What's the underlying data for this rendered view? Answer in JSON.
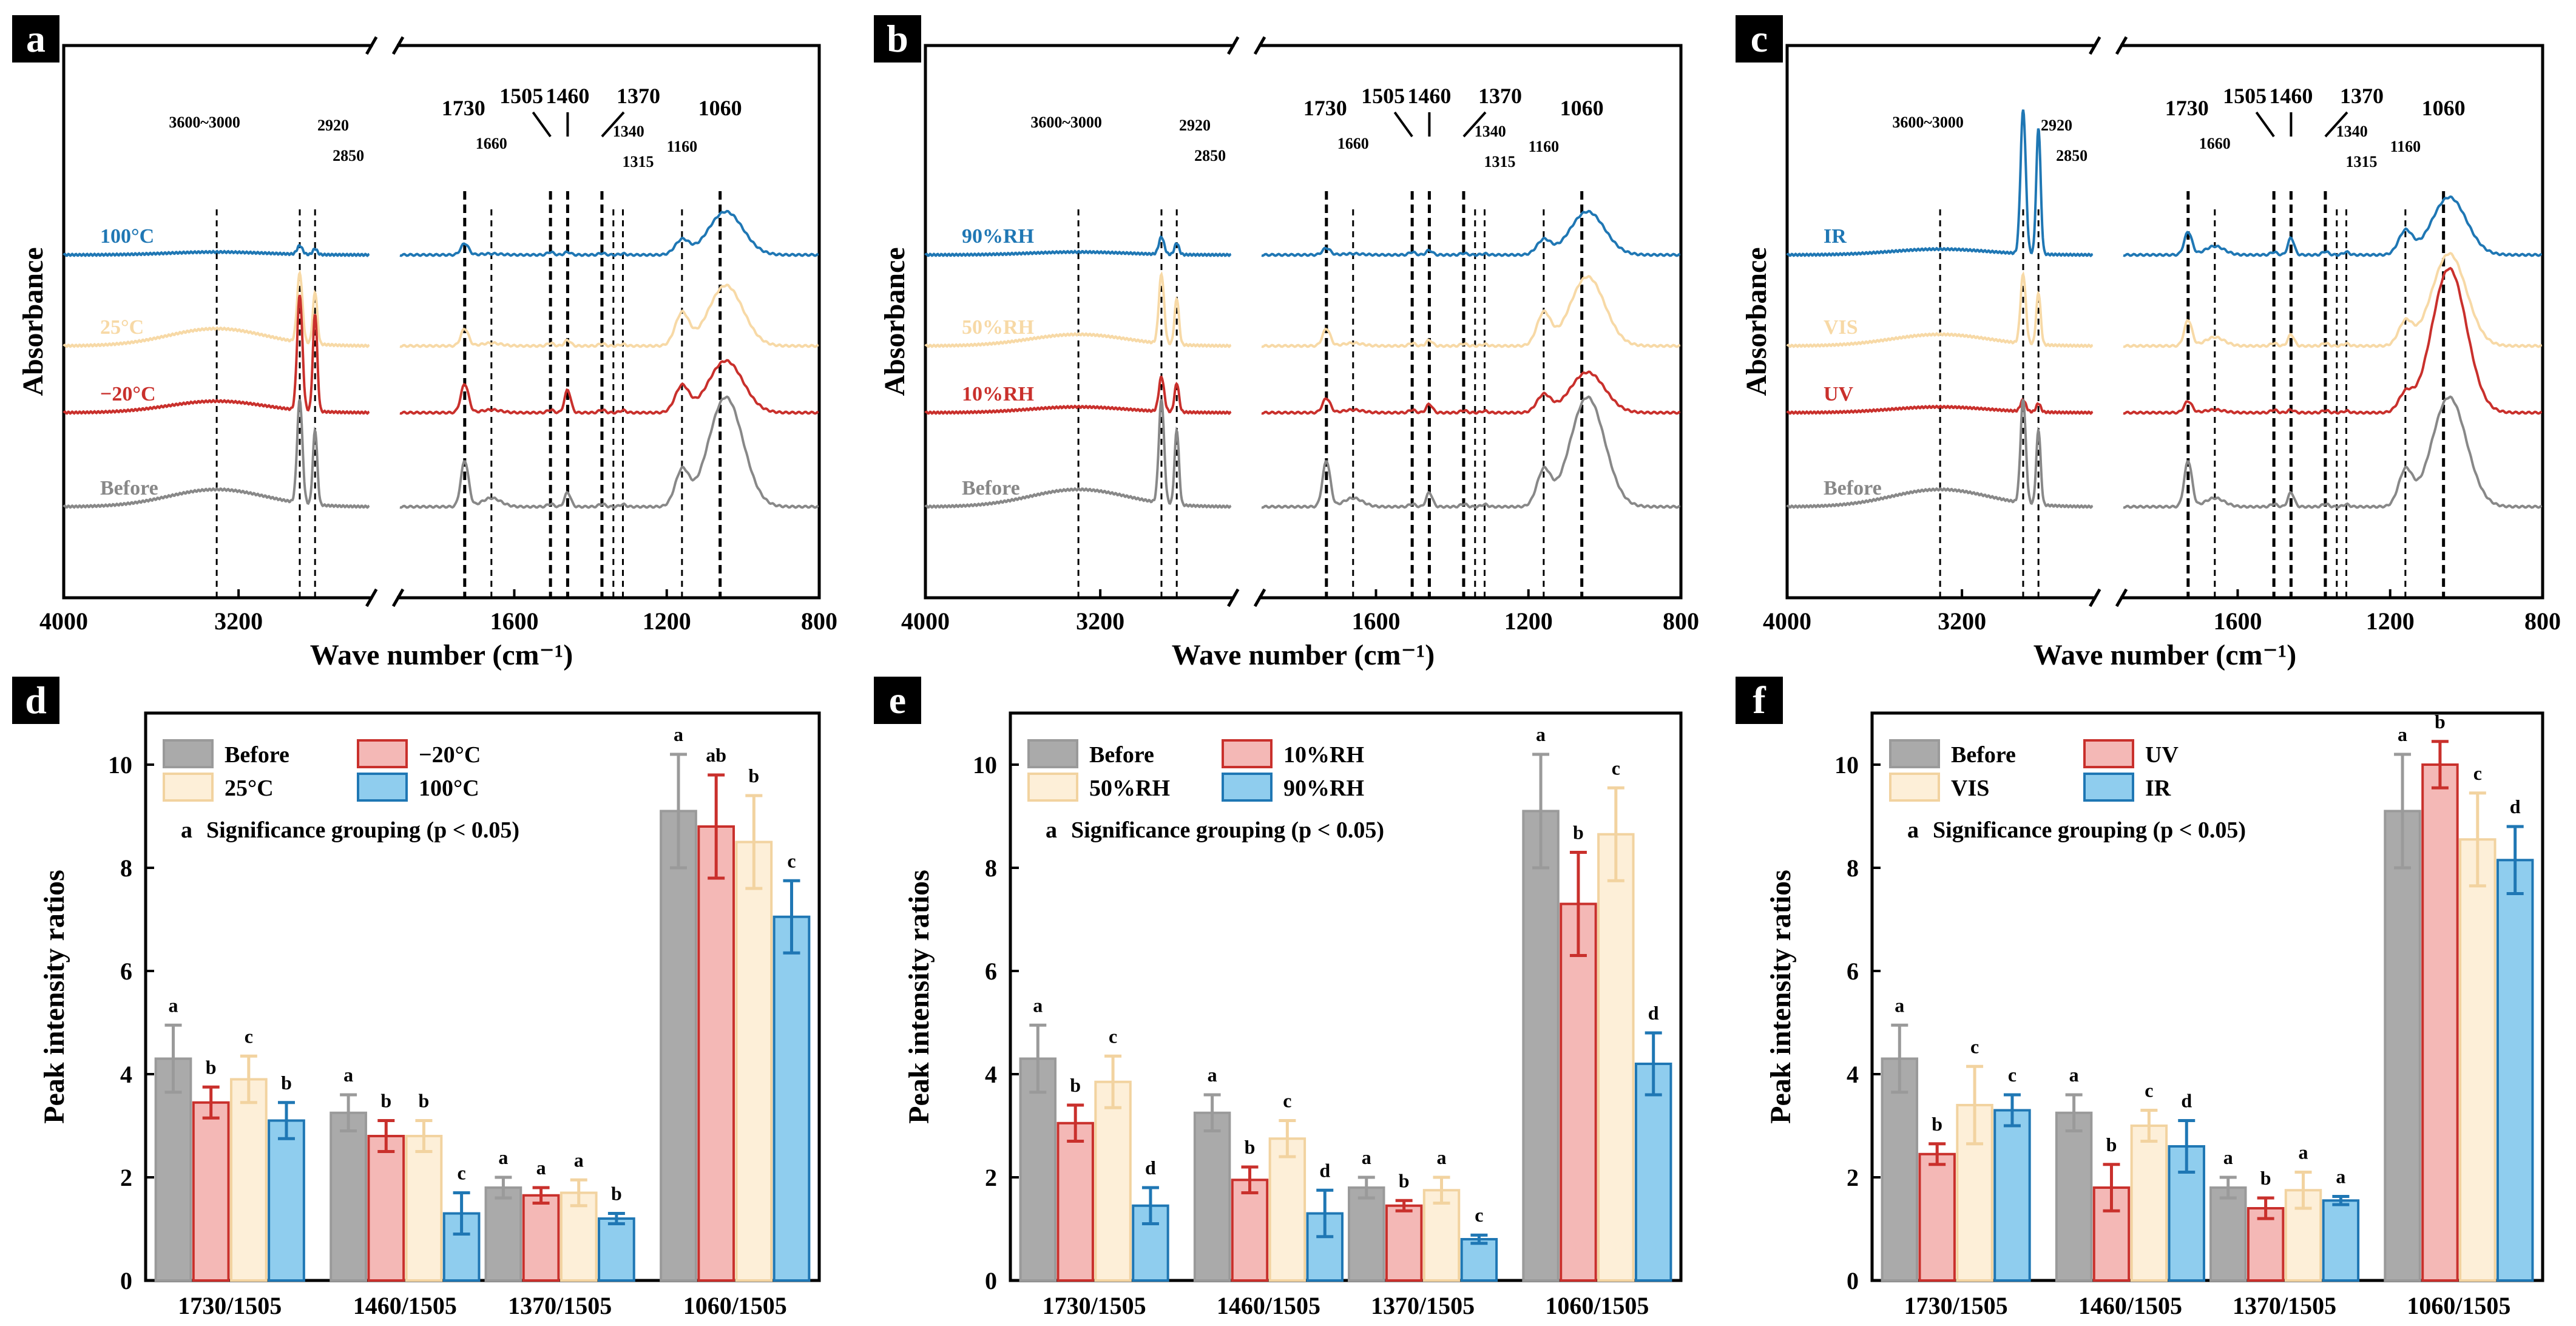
{
  "figure": {
    "ftir_panels": [
      {
        "label": "a",
        "y_label": "Absorbance",
        "x_label": "Wave number (cm⁻¹)",
        "x_ticks": [
          "4000",
          "3200",
          "1600",
          "1200",
          "800"
        ],
        "peak_labels_big": [
          "1730",
          "1505",
          "1460",
          "1370",
          "1060"
        ],
        "peak_labels_small": [
          "3600~3000",
          "2920",
          "2850",
          "1660",
          "1340",
          "1315",
          "1160"
        ],
        "spectra": [
          {
            "name": "100°C",
            "color": "#1f77b4"
          },
          {
            "name": "25°C",
            "color": "#f7d9a6"
          },
          {
            "name": "−20°C",
            "color": "#c9302c"
          },
          {
            "name": "Before",
            "color": "#888888"
          }
        ]
      },
      {
        "label": "b",
        "y_label": "Absorbance",
        "x_label": "Wave number (cm⁻¹)",
        "x_ticks": [
          "4000",
          "3200",
          "1600",
          "1200",
          "800"
        ],
        "peak_labels_big": [
          "1730",
          "1505",
          "1460",
          "1370",
          "1060"
        ],
        "peak_labels_small": [
          "3600~3000",
          "2920",
          "2850",
          "1660",
          "1340",
          "1315",
          "1160"
        ],
        "spectra": [
          {
            "name": "90%RH",
            "color": "#1f77b4"
          },
          {
            "name": "50%RH",
            "color": "#f7d9a6"
          },
          {
            "name": "10%RH",
            "color": "#c9302c"
          },
          {
            "name": "Before",
            "color": "#888888"
          }
        ]
      },
      {
        "label": "c",
        "y_label": "Absorbance",
        "x_label": "Wave number (cm⁻¹)",
        "x_ticks": [
          "4000",
          "3200",
          "1600",
          "1200",
          "800"
        ],
        "peak_labels_big": [
          "1730",
          "1505",
          "1460",
          "1370",
          "1060"
        ],
        "peak_labels_small": [
          "3600~3000",
          "2920",
          "2850",
          "1660",
          "1340",
          "1315",
          "1160"
        ],
        "spectra": [
          {
            "name": "IR",
            "color": "#1f77b4"
          },
          {
            "name": "VIS",
            "color": "#f7d9a6"
          },
          {
            "name": "UV",
            "color": "#c9302c"
          },
          {
            "name": "Before",
            "color": "#888888"
          }
        ]
      }
    ],
    "significance_note": "Significance grouping (p < 0.05)",
    "significance_marker": "a"
  },
  "chart_data": [
    {
      "type": "line",
      "panel": "a",
      "title": "",
      "xlabel": "Wave number (cm⁻¹)",
      "ylabel": "Absorbance",
      "x_range": [
        4000,
        800
      ],
      "x_ticks": [
        4000,
        3200,
        1600,
        1200,
        800
      ],
      "axis_break": [
        2600,
        1900
      ],
      "peaks_cm": [
        3300,
        2920,
        2850,
        1730,
        1660,
        1505,
        1460,
        1370,
        1340,
        1315,
        1160,
        1060
      ],
      "series": [
        {
          "name": "100°C",
          "color": "#1f77b4"
        },
        {
          "name": "25°C",
          "color": "#f7d9a6"
        },
        {
          "name": "−20°C",
          "color": "#c9302c"
        },
        {
          "name": "Before",
          "color": "#888888"
        }
      ]
    },
    {
      "type": "line",
      "panel": "b",
      "title": "",
      "xlabel": "Wave number (cm⁻¹)",
      "ylabel": "Absorbance",
      "x_range": [
        4000,
        800
      ],
      "x_ticks": [
        4000,
        3200,
        1600,
        1200,
        800
      ],
      "axis_break": [
        2600,
        1900
      ],
      "peaks_cm": [
        3300,
        2920,
        2850,
        1730,
        1660,
        1505,
        1460,
        1370,
        1340,
        1315,
        1160,
        1060
      ],
      "series": [
        {
          "name": "90%RH",
          "color": "#1f77b4"
        },
        {
          "name": "50%RH",
          "color": "#f7d9a6"
        },
        {
          "name": "10%RH",
          "color": "#c9302c"
        },
        {
          "name": "Before",
          "color": "#888888"
        }
      ]
    },
    {
      "type": "line",
      "panel": "c",
      "title": "",
      "xlabel": "Wave number (cm⁻¹)",
      "ylabel": "Absorbance",
      "x_range": [
        4000,
        800
      ],
      "x_ticks": [
        4000,
        3200,
        1600,
        1200,
        800
      ],
      "axis_break": [
        2600,
        1900
      ],
      "peaks_cm": [
        3300,
        2920,
        2850,
        1730,
        1660,
        1505,
        1460,
        1370,
        1340,
        1315,
        1160,
        1060
      ],
      "series": [
        {
          "name": "IR",
          "color": "#1f77b4"
        },
        {
          "name": "VIS",
          "color": "#f7d9a6"
        },
        {
          "name": "UV",
          "color": "#c9302c"
        },
        {
          "name": "Before",
          "color": "#888888"
        }
      ]
    },
    {
      "type": "bar",
      "panel": "d",
      "title": "",
      "xlabel": "",
      "ylabel": "Peak intensity ratios",
      "ylim": [
        0,
        11
      ],
      "y_ticks": [
        0,
        2,
        4,
        6,
        8,
        10
      ],
      "categories": [
        "1730/1505",
        "1460/1505",
        "1370/1505",
        "1060/1505"
      ],
      "series": [
        {
          "name": "Before",
          "color": "#9a9a9a",
          "fill": "#aaaaaa",
          "values": [
            4.3,
            3.25,
            1.8,
            9.1
          ],
          "errors": [
            0.65,
            0.35,
            0.2,
            1.1
          ],
          "groups": [
            "a",
            "a",
            "a",
            "a"
          ]
        },
        {
          "name": "−20°C",
          "color": "#c9302c",
          "fill": "#f4b8b6",
          "values": [
            3.45,
            2.8,
            1.65,
            8.8
          ],
          "errors": [
            0.3,
            0.3,
            0.15,
            1.0
          ],
          "groups": [
            "b",
            "b",
            "a",
            "ab"
          ]
        },
        {
          "name": "25°C",
          "color": "#f2d3a0",
          "fill": "#fdefd8",
          "values": [
            3.9,
            2.8,
            1.7,
            8.5
          ],
          "errors": [
            0.45,
            0.3,
            0.25,
            0.9
          ],
          "groups": [
            "c",
            "b",
            "a",
            "b"
          ]
        },
        {
          "name": "100°C",
          "color": "#1f77b4",
          "fill": "#8fcdee",
          "values": [
            3.1,
            1.3,
            1.2,
            7.05
          ],
          "errors": [
            0.35,
            0.4,
            0.1,
            0.7
          ],
          "groups": [
            "b",
            "c",
            "b",
            "c"
          ]
        }
      ]
    },
    {
      "type": "bar",
      "panel": "e",
      "title": "",
      "xlabel": "",
      "ylabel": "Peak intensity ratios",
      "ylim": [
        0,
        11
      ],
      "y_ticks": [
        0,
        2,
        4,
        6,
        8,
        10
      ],
      "categories": [
        "1730/1505",
        "1460/1505",
        "1370/1505",
        "1060/1505"
      ],
      "series": [
        {
          "name": "Before",
          "color": "#9a9a9a",
          "fill": "#aaaaaa",
          "values": [
            4.3,
            3.25,
            1.8,
            9.1
          ],
          "errors": [
            0.65,
            0.35,
            0.2,
            1.1
          ],
          "groups": [
            "a",
            "a",
            "a",
            "a"
          ]
        },
        {
          "name": "10%RH",
          "color": "#c9302c",
          "fill": "#f4b8b6",
          "values": [
            3.05,
            1.95,
            1.45,
            7.3
          ],
          "errors": [
            0.35,
            0.25,
            0.1,
            1.0
          ],
          "groups": [
            "b",
            "b",
            "b",
            "b"
          ]
        },
        {
          "name": "50%RH",
          "color": "#f2d3a0",
          "fill": "#fdefd8",
          "values": [
            3.85,
            2.75,
            1.75,
            8.65
          ],
          "errors": [
            0.5,
            0.35,
            0.25,
            0.9
          ],
          "groups": [
            "c",
            "c",
            "a",
            "c"
          ]
        },
        {
          "name": "90%RH",
          "color": "#1f77b4",
          "fill": "#8fcdee",
          "values": [
            1.45,
            1.3,
            0.8,
            4.2
          ],
          "errors": [
            0.35,
            0.45,
            0.08,
            0.6
          ],
          "groups": [
            "d",
            "d",
            "c",
            "d"
          ]
        }
      ]
    },
    {
      "type": "bar",
      "panel": "f",
      "title": "",
      "xlabel": "",
      "ylabel": "Peak intensity ratios",
      "ylim": [
        0,
        11
      ],
      "y_ticks": [
        0,
        2,
        4,
        6,
        8,
        10
      ],
      "categories": [
        "1730/1505",
        "1460/1505",
        "1370/1505",
        "1060/1505"
      ],
      "series": [
        {
          "name": "Before",
          "color": "#9a9a9a",
          "fill": "#aaaaaa",
          "values": [
            4.3,
            3.25,
            1.8,
            9.1
          ],
          "errors": [
            0.65,
            0.35,
            0.2,
            1.1
          ],
          "groups": [
            "a",
            "a",
            "a",
            "a"
          ]
        },
        {
          "name": "UV",
          "color": "#c9302c",
          "fill": "#f4b8b6",
          "values": [
            2.45,
            1.8,
            1.4,
            10.0
          ],
          "errors": [
            0.2,
            0.45,
            0.2,
            0.45
          ],
          "groups": [
            "b",
            "b",
            "b",
            "b"
          ]
        },
        {
          "name": "VIS",
          "color": "#f2d3a0",
          "fill": "#fdefd8",
          "values": [
            3.4,
            3.0,
            1.75,
            8.55
          ],
          "errors": [
            0.75,
            0.3,
            0.35,
            0.9
          ],
          "groups": [
            "c",
            "c",
            "a",
            "c"
          ]
        },
        {
          "name": "IR",
          "color": "#1f77b4",
          "fill": "#8fcdee",
          "values": [
            3.3,
            2.6,
            1.55,
            8.15
          ],
          "errors": [
            0.3,
            0.5,
            0.08,
            0.65
          ],
          "groups": [
            "c",
            "d",
            "a",
            "d"
          ]
        }
      ]
    }
  ]
}
